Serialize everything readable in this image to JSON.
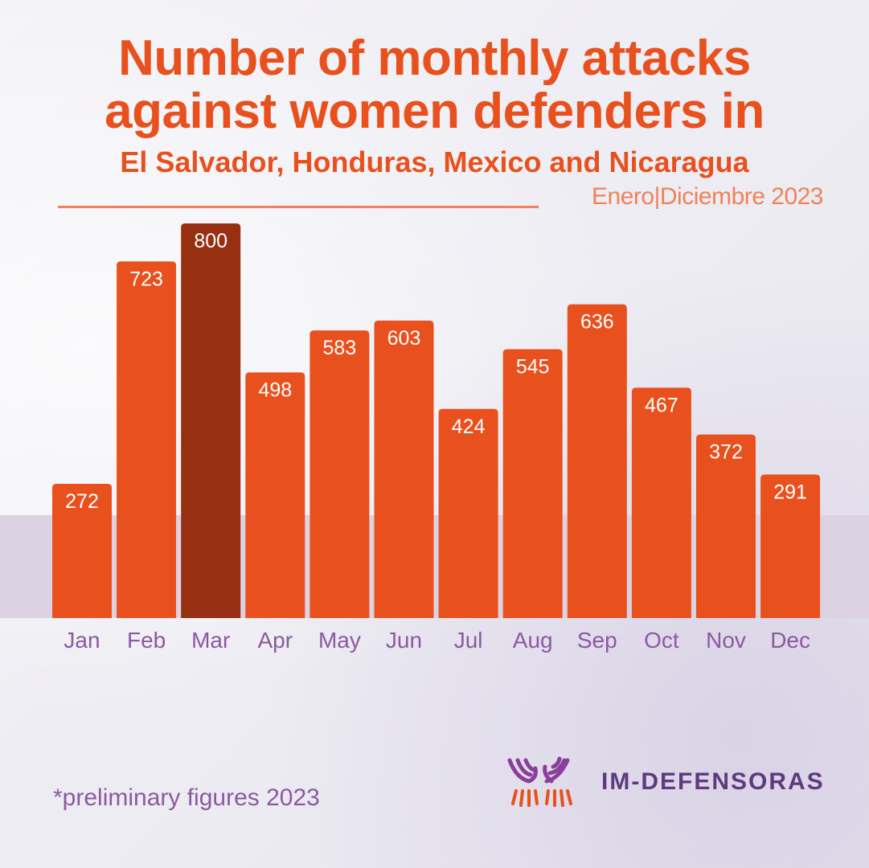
{
  "header": {
    "title_line1": "Number of monthly attacks",
    "title_line2": "against women defenders in",
    "title_line3": "El Salvador, Honduras, Mexico and Nicaragua",
    "subtitle": "Enero|Diciembre 2023"
  },
  "footnote": "*preliminary figures 2023",
  "logo": {
    "text": "IM-DEFENSORAS",
    "icon": "hands-icon"
  },
  "colors": {
    "bar": "#e8511e",
    "highlight_bar": "#963010",
    "title": "#e8511e",
    "month_label": "#8a5aa0",
    "band": "#dcd2e2"
  },
  "chart_data": {
    "type": "bar",
    "title": "Number of monthly attacks against women defenders in El Salvador, Honduras, Mexico and Nicaragua",
    "subtitle": "Enero|Diciembre 2023",
    "categories": [
      "Jan",
      "Feb",
      "Mar",
      "Apr",
      "May",
      "Jun",
      "Jul",
      "Aug",
      "Sep",
      "Oct",
      "Nov",
      "Dec"
    ],
    "values": [
      272,
      723,
      800,
      498,
      583,
      603,
      424,
      545,
      636,
      467,
      372,
      291
    ],
    "highlight_index": 2,
    "xlabel": "",
    "ylabel": "",
    "ylim": [
      0,
      800
    ],
    "grid": false,
    "data_labels": true
  }
}
